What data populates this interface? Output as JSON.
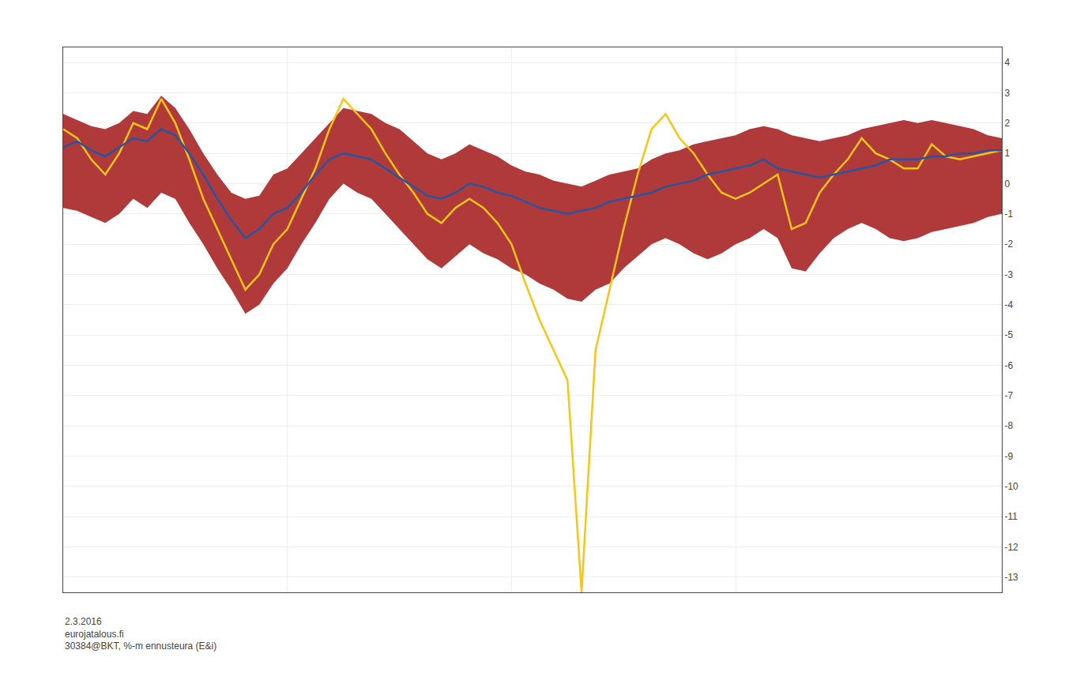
{
  "chart_data": {
    "type": "line",
    "x": [
      0,
      1,
      2,
      3,
      4,
      5,
      6,
      7,
      8,
      9,
      10,
      11,
      12,
      13,
      14,
      15,
      16,
      17,
      18,
      19,
      20,
      21,
      22,
      23,
      24,
      25,
      26,
      27,
      28,
      29,
      30,
      31,
      32,
      33,
      34,
      35,
      36,
      37,
      38,
      39,
      40,
      41,
      42,
      43,
      44,
      45,
      46,
      47,
      48,
      49,
      50,
      51,
      52,
      53,
      54,
      55,
      56,
      57,
      58,
      59,
      60,
      61,
      62,
      63,
      64,
      65,
      66,
      67
    ],
    "series": [
      {
        "type": "area",
        "color": "#b03a3a",
        "lower": [
          -0.8,
          -0.9,
          -1.1,
          -1.3,
          -1.0,
          -0.5,
          -0.8,
          -0.3,
          -0.5,
          -1.3,
          -2.0,
          -2.8,
          -3.5,
          -4.3,
          -4.0,
          -3.3,
          -2.8,
          -2.0,
          -1.3,
          -0.5,
          0.0,
          -0.3,
          -0.5,
          -1.0,
          -1.5,
          -2.0,
          -2.5,
          -2.8,
          -2.4,
          -2.0,
          -2.3,
          -2.5,
          -2.8,
          -3.0,
          -3.3,
          -3.5,
          -3.8,
          -3.9,
          -3.5,
          -3.3,
          -2.8,
          -2.4,
          -2.0,
          -1.8,
          -2.0,
          -2.3,
          -2.5,
          -2.3,
          -2.0,
          -1.8,
          -1.5,
          -1.8,
          -2.8,
          -2.9,
          -2.3,
          -1.8,
          -1.5,
          -1.3,
          -1.5,
          -1.8,
          -1.9,
          -1.8,
          -1.6,
          -1.5,
          -1.4,
          -1.3,
          -1.1,
          -1.0
        ],
        "upper": [
          2.3,
          2.1,
          1.9,
          1.8,
          2.0,
          2.4,
          2.3,
          2.9,
          2.5,
          1.8,
          1.0,
          0.3,
          -0.3,
          -0.5,
          -0.4,
          0.3,
          0.5,
          1.0,
          1.5,
          2.0,
          2.5,
          2.4,
          2.3,
          2.0,
          1.8,
          1.4,
          1.0,
          0.8,
          1.0,
          1.3,
          1.1,
          0.9,
          0.6,
          0.4,
          0.3,
          0.1,
          0.0,
          -0.1,
          0.1,
          0.3,
          0.4,
          0.5,
          0.8,
          1.0,
          1.1,
          1.3,
          1.4,
          1.5,
          1.6,
          1.8,
          1.9,
          1.8,
          1.6,
          1.5,
          1.4,
          1.5,
          1.6,
          1.8,
          1.9,
          2.0,
          2.1,
          2.0,
          2.1,
          2.0,
          1.9,
          1.8,
          1.6,
          1.5
        ]
      },
      {
        "type": "line",
        "color": "#f5c518",
        "values": [
          1.8,
          1.5,
          0.8,
          0.3,
          1.0,
          2.0,
          1.8,
          2.8,
          2.0,
          0.8,
          -0.5,
          -1.5,
          -2.5,
          -3.5,
          -3.0,
          -2.0,
          -1.5,
          -0.5,
          0.5,
          1.8,
          2.8,
          2.3,
          1.8,
          1.0,
          0.3,
          -0.3,
          -1.0,
          -1.3,
          -0.8,
          -0.5,
          -0.8,
          -1.3,
          -2.0,
          -3.3,
          -4.5,
          -5.5,
          -6.5,
          -13.5,
          -5.5,
          -3.5,
          -1.5,
          0.3,
          1.8,
          2.3,
          1.5,
          1.0,
          0.3,
          -0.3,
          -0.5,
          -0.3,
          0.0,
          0.3,
          -1.5,
          -1.3,
          -0.3,
          0.3,
          0.8,
          1.5,
          1.0,
          0.8,
          0.5,
          0.5,
          1.3,
          0.9,
          0.8,
          0.9,
          1.0,
          1.1
        ]
      },
      {
        "type": "line",
        "color": "#2855a0",
        "values": [
          1.2,
          1.4,
          1.1,
          0.9,
          1.2,
          1.5,
          1.4,
          1.8,
          1.6,
          1.0,
          0.3,
          -0.5,
          -1.2,
          -1.8,
          -1.5,
          -1.0,
          -0.8,
          -0.3,
          0.3,
          0.8,
          1.0,
          0.9,
          0.8,
          0.5,
          0.2,
          -0.1,
          -0.4,
          -0.5,
          -0.3,
          0.0,
          -0.1,
          -0.3,
          -0.4,
          -0.6,
          -0.8,
          -0.9,
          -1.0,
          -0.9,
          -0.8,
          -0.6,
          -0.5,
          -0.4,
          -0.3,
          -0.1,
          0.0,
          0.1,
          0.3,
          0.4,
          0.5,
          0.6,
          0.8,
          0.5,
          0.4,
          0.3,
          0.2,
          0.3,
          0.4,
          0.5,
          0.6,
          0.8,
          0.8,
          0.8,
          0.9,
          0.9,
          1.0,
          1.0,
          1.1,
          1.1
        ]
      }
    ],
    "xlim": [
      0,
      67
    ],
    "xticks": [
      16,
      32,
      48
    ],
    "ylim": [
      -13.5,
      4.5
    ],
    "yticks": [
      -13,
      -12,
      -11,
      -10,
      -9,
      -8,
      -7,
      -6,
      -5,
      -4,
      -3,
      -2,
      -1,
      0,
      1,
      2,
      3,
      4
    ],
    "grid": true,
    "tick_labels": "y",
    "annotations": [
      "2.3.2016\neurojatalous.fi\n30384@BKT, %-m ennusteura (E&i)"
    ]
  }
}
